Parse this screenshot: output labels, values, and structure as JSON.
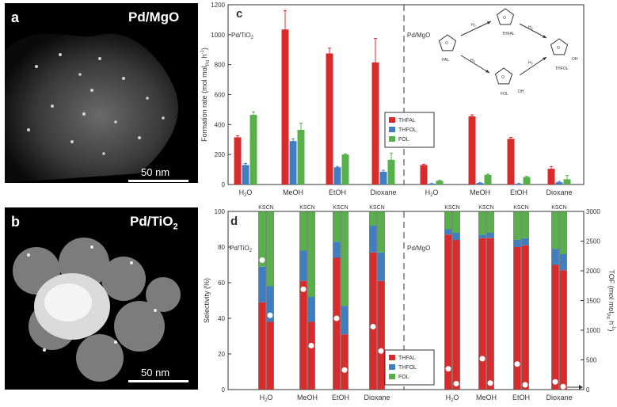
{
  "panels": {
    "a": {
      "letter": "a",
      "title": "Pd/MgO",
      "scalebar": "50 nm"
    },
    "b": {
      "letter": "b",
      "title_main": "Pd/TiO",
      "title_sub": "2",
      "scalebar": "50 nm"
    }
  },
  "colors": {
    "THFAL": "#d92b2b",
    "THFOL": "#3f7fc1",
    "FOL": "#57b04a"
  },
  "chart_data": [
    {
      "panel": "c",
      "type": "bar",
      "ylabel_main": "Formation rate (mol",
      "ylabel_rest": "mol",
      "ylim": [
        0,
        1200
      ],
      "yticks": [
        0,
        200,
        400,
        600,
        800,
        1000,
        1200
      ],
      "groups": [
        {
          "catalyst_main": "Pd/TiO",
          "catalyst_sub": "2",
          "categories": [
            "H",
            "MeOH",
            "EtOH",
            "Dioxane"
          ]
        },
        {
          "catalyst_main": "Pd/MgO",
          "catalyst_sub": "",
          "categories": [
            "H",
            "MeOH",
            "EtOH",
            "Dioxane"
          ]
        }
      ],
      "legend": [
        "THFAL",
        "THFOL",
        "FOL"
      ],
      "series": [
        {
          "name": "THFAL",
          "values": [
            315,
            1035,
            875,
            815,
            130,
            455,
            305,
            105
          ],
          "errors": [
            10,
            125,
            35,
            160,
            5,
            10,
            10,
            15
          ]
        },
        {
          "name": "THFOL",
          "values": [
            130,
            290,
            115,
            85,
            5,
            10,
            5,
            15
          ],
          "errors": [
            10,
            15,
            5,
            10,
            2,
            2,
            2,
            5
          ]
        },
        {
          "name": "FOL",
          "values": [
            465,
            365,
            200,
            165,
            25,
            65,
            50,
            35
          ],
          "errors": [
            20,
            45,
            5,
            45,
            3,
            5,
            5,
            25
          ]
        }
      ],
      "scheme": {
        "fal": "FAL",
        "thfal": "THFAL",
        "fol": "FOL",
        "thfol": "THFOL",
        "h2": "H",
        "oh": "OH",
        "o": "O"
      }
    },
    {
      "panel": "d",
      "type": "bar",
      "stacked": true,
      "ylabel": "Selectivity (%)",
      "ylim": [
        0,
        100
      ],
      "yticks": [
        0,
        20,
        40,
        60,
        80,
        100
      ],
      "ylabel_right_main": "TOF (mol",
      "ylabel_right_rest": "mol",
      "ylim_right": [
        0,
        3000
      ],
      "yticks_right": [
        0,
        500,
        1000,
        1500,
        2000,
        2500,
        3000
      ],
      "groups": [
        {
          "catalyst_main": "Pd/TiO",
          "catalyst_sub": "2",
          "categories": [
            "H",
            "MeOH",
            "EtOH",
            "Dioxane"
          ]
        },
        {
          "catalyst_main": "Pd/MgO",
          "catalyst_sub": "",
          "categories": [
            "H",
            "MeOH",
            "EtOH",
            "Dioxane"
          ]
        }
      ],
      "bar_pair_label": "KSCN",
      "legend": [
        "THFAL",
        "THFOL",
        "FOL"
      ],
      "bars": [
        {
          "THFAL": 49,
          "THFOL": 20,
          "TOF": 2180
        },
        {
          "THFAL": 38,
          "THFOL": 20,
          "TOF": 1250
        },
        {
          "THFAL": 61,
          "THFOL": 17,
          "TOF": 1690
        },
        {
          "THFAL": 38,
          "THFOL": 14,
          "TOF": 740
        },
        {
          "THFAL": 74,
          "THFOL": 9,
          "TOF": 1200
        },
        {
          "THFAL": 31,
          "THFOL": 16,
          "TOF": 330
        },
        {
          "THFAL": 77,
          "THFOL": 15,
          "TOF": 1060
        },
        {
          "THFAL": 61,
          "THFOL": 16,
          "TOF": 650
        },
        {
          "THFAL": 87,
          "THFOL": 3,
          "TOF": 350
        },
        {
          "THFAL": 84,
          "THFOL": 4,
          "TOF": 100
        },
        {
          "THFAL": 85,
          "THFOL": 2,
          "TOF": 520
        },
        {
          "THFAL": 85,
          "THFOL": 3,
          "TOF": 110
        },
        {
          "THFAL": 80,
          "THFOL": 4,
          "TOF": 430
        },
        {
          "THFAL": 81,
          "THFOL": 4,
          "TOF": 80
        },
        {
          "THFAL": 70,
          "THFOL": 9,
          "TOF": 130
        },
        {
          "THFAL": 67,
          "THFOL": 9,
          "TOF": 50
        }
      ]
    }
  ]
}
